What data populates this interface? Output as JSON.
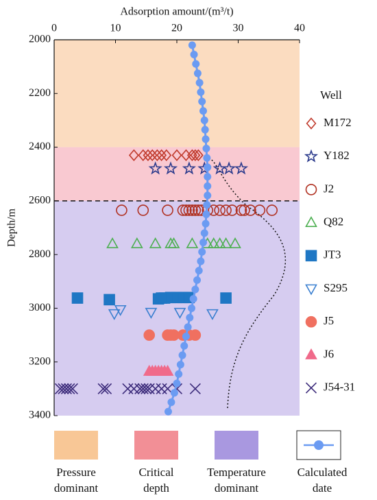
{
  "chart_data": {
    "type": "scatter",
    "title": "Adsorption amount/(m³/t)",
    "y_label": "Depth/m",
    "legend_title": "Well",
    "xlim": [
      0,
      40
    ],
    "xticks": [
      0,
      10,
      20,
      30,
      40
    ],
    "ylim": [
      2000,
      3400
    ],
    "yticks": [
      2000,
      2200,
      2400,
      2600,
      2800,
      3000,
      3200,
      3400
    ],
    "y_inverted": true,
    "critical_line": 2600,
    "zones": [
      {
        "label": [
          "Pressure",
          "dominant"
        ],
        "color": "#fbdcc0",
        "legend_color": "#f8c796",
        "range": [
          2000,
          2400
        ]
      },
      {
        "label": [
          "Critical",
          "depth"
        ],
        "color": "#f9c9d1",
        "legend_color": "#f28f96",
        "range": [
          2400,
          2600
        ]
      },
      {
        "label": [
          "Temperature",
          "dominant"
        ],
        "color": "#d6ccf0",
        "legend_color": "#a998e0",
        "range": [
          2600,
          3400
        ]
      }
    ],
    "series": [
      {
        "name": "M172",
        "marker": "diamond",
        "color": "#c0392b",
        "filled": false,
        "x": [
          13,
          14.5,
          15.3,
          16,
          16.8,
          17.5,
          18.3,
          20,
          21.5,
          22.5,
          23,
          23.5
        ],
        "y": [
          2430,
          2430,
          2430,
          2430,
          2430,
          2430,
          2430,
          2430,
          2430,
          2430,
          2430,
          2430
        ]
      },
      {
        "name": "Y182",
        "marker": "star",
        "color": "#2b3a8c",
        "filled": false,
        "x": [
          16.5,
          19,
          22,
          24.5,
          27,
          28.5,
          30.5
        ],
        "y": [
          2480,
          2480,
          2480,
          2480,
          2480,
          2480,
          2480
        ]
      },
      {
        "name": "J2",
        "marker": "circle",
        "color": "#b03020",
        "filled": false,
        "x": [
          11,
          14.5,
          18.5,
          21,
          21.5,
          22,
          22.5,
          23,
          23.5,
          24,
          25,
          26,
          27,
          28,
          29,
          30.5,
          31,
          32,
          33.5,
          35.5
        ],
        "y": [
          2635,
          2635,
          2635,
          2635,
          2635,
          2635,
          2635,
          2635,
          2635,
          2635,
          2635,
          2635,
          2635,
          2635,
          2635,
          2635,
          2635,
          2635,
          2635,
          2635
        ]
      },
      {
        "name": "Q82",
        "marker": "triangle",
        "color": "#4caf50",
        "filled": false,
        "x": [
          9.5,
          13.5,
          16.5,
          19,
          19.5,
          22.5,
          25,
          26,
          27,
          28,
          29.5
        ],
        "y": [
          2760,
          2760,
          2760,
          2760,
          2760,
          2760,
          2760,
          2760,
          2760,
          2760,
          2760
        ]
      },
      {
        "name": "JT3",
        "marker": "square",
        "color": "#1f77c4",
        "filled": true,
        "x": [
          3.8,
          9,
          17,
          17.5,
          18,
          19,
          20,
          21,
          22,
          28
        ],
        "y": [
          2962,
          2968,
          2965,
          2962,
          2962,
          2960,
          2960,
          2960,
          2960,
          2962
        ]
      },
      {
        "name": "S295",
        "marker": "triangle-down",
        "color": "#3a7fd0",
        "filled": false,
        "x": [
          9.8,
          10.8,
          15.8,
          20.5,
          25.8
        ],
        "y": [
          3020,
          3005,
          3015,
          3015,
          3020
        ]
      },
      {
        "name": "J5",
        "marker": "circle",
        "color": "#f07060",
        "filled": true,
        "x": [
          15.5,
          18.5,
          19,
          19.5,
          21,
          22,
          23
        ],
        "y": [
          3100,
          3100,
          3100,
          3100,
          3100,
          3100,
          3100
        ]
      },
      {
        "name": "J6",
        "marker": "triangle",
        "color": "#f06a8a",
        "filled": true,
        "x": [
          15.5,
          16,
          16.5,
          17,
          17.5,
          18,
          18.5
        ],
        "y": [
          3235,
          3235,
          3235,
          3235,
          3235,
          3235,
          3235
        ]
      },
      {
        "name": "J54-31",
        "marker": "x",
        "color": "#3b2a7a",
        "filled": false,
        "x": [
          1,
          1.5,
          2,
          2.5,
          3,
          8,
          8.5,
          12,
          13,
          14,
          14.5,
          15,
          15.5,
          16.5,
          17.5,
          18.5,
          20,
          23
        ],
        "y": [
          3300,
          3300,
          3300,
          3300,
          3300,
          3300,
          3300,
          3300,
          3300,
          3300,
          3300,
          3300,
          3300,
          3300,
          3300,
          3300,
          3300,
          3300
        ]
      }
    ],
    "calculated": {
      "name": "Calculated date",
      "color": "#6b9bf2",
      "x": [
        22.5,
        22.8,
        23.1,
        23.4,
        23.7,
        23.9,
        24.1,
        24.3,
        24.5,
        24.6,
        24.7,
        24.8,
        24.9,
        25,
        25,
        25,
        25,
        24.9,
        24.8,
        24.7,
        24.5,
        24.3,
        24.1,
        23.9,
        23.6,
        23.3,
        23,
        22.7,
        22.4,
        22.1,
        21.8,
        21.5,
        21.2,
        20.9,
        20.6,
        20.3,
        20,
        19.6,
        19.1,
        18.6
      ],
      "y": [
        2020,
        2055,
        2090,
        2125,
        2160,
        2195,
        2230,
        2265,
        2300,
        2335,
        2370,
        2405,
        2440,
        2475,
        2510,
        2545,
        2580,
        2615,
        2650,
        2685,
        2720,
        2755,
        2790,
        2825,
        2860,
        2895,
        2930,
        2965,
        3000,
        3035,
        3070,
        3105,
        3140,
        3175,
        3210,
        3245,
        3280,
        3315,
        3350,
        3385
      ]
    }
  }
}
